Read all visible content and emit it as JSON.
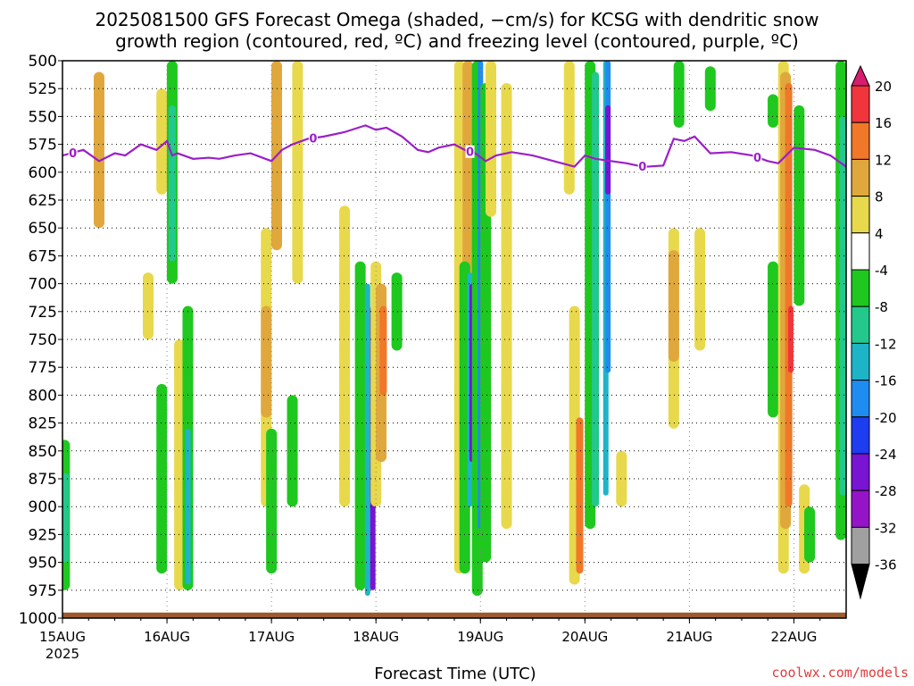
{
  "chart_data": {
    "type": "heatmap",
    "title_line1": "2025081500 GFS Forecast Omega (shaded, −cm/s) for KCSG with dendritic snow",
    "title_line2": "growth region (contoured, red, ºC) and freezing level (contoured, purple, ºC)",
    "xlabel": "Forecast Time (UTC)",
    "x_ticks": [
      "15AUG",
      "16AUG",
      "17AUG",
      "18AUG",
      "19AUG",
      "20AUG",
      "21AUG",
      "22AUG"
    ],
    "x_year": "2025",
    "xlim_days": [
      0,
      7.5
    ],
    "y_ticks": [
      500,
      525,
      550,
      575,
      600,
      625,
      650,
      675,
      700,
      725,
      750,
      775,
      800,
      825,
      850,
      875,
      900,
      925,
      950,
      975,
      1000
    ],
    "ylim_hpa": [
      500,
      1000
    ],
    "y_inverted": true,
    "grid": true,
    "colorbar": {
      "labels": [
        "20",
        "16",
        "12",
        "8",
        "4",
        "-4",
        "-8",
        "-12",
        "-16",
        "-20",
        "-24",
        "-28",
        "-32",
        "-36"
      ],
      "colors": [
        "#d81c6e",
        "#f0363c",
        "#f07828",
        "#e0a83c",
        "#e8d84c",
        "#ffffff",
        "#1ec81e",
        "#23c88c",
        "#1eb4c8",
        "#1e8cf0",
        "#1e3cf0",
        "#7814d2",
        "#9614c8",
        "#a0a0a0",
        "#000000"
      ]
    },
    "freezing_level": {
      "label": "0",
      "color": "#9b1fc8",
      "x_days": [
        0,
        0.2,
        0.35,
        0.5,
        0.6,
        0.75,
        0.9,
        1.0,
        1.05,
        1.1,
        1.25,
        1.4,
        1.5,
        1.65,
        1.8,
        2.0,
        2.1,
        2.2,
        2.35,
        2.5,
        2.7,
        2.9,
        3.0,
        3.1,
        3.25,
        3.4,
        3.5,
        3.6,
        3.75,
        3.85,
        3.95,
        4.05,
        4.15,
        4.3,
        4.5,
        4.7,
        4.9,
        5.0,
        5.1,
        5.25,
        5.4,
        5.5,
        5.6,
        5.75,
        5.85,
        5.95,
        6.05,
        6.2,
        6.4,
        6.6,
        6.75,
        6.85,
        7.0,
        7.2,
        7.35,
        7.5
      ],
      "hpa": [
        585,
        580,
        590,
        583,
        585,
        575,
        580,
        572,
        585,
        583,
        588,
        587,
        588,
        585,
        583,
        590,
        580,
        575,
        570,
        568,
        564,
        558,
        562,
        560,
        568,
        580,
        582,
        578,
        575,
        580,
        583,
        590,
        585,
        582,
        585,
        590,
        595,
        585,
        588,
        590,
        592,
        594,
        595,
        594,
        570,
        572,
        568,
        583,
        582,
        585,
        590,
        592,
        578,
        580,
        585,
        595
      ],
      "label_x_days": [
        0.1,
        2.4,
        3.9,
        5.55,
        6.65
      ]
    },
    "omega_cells": [
      {
        "day": 0.35,
        "top": 510,
        "bot": 650,
        "level": 8
      },
      {
        "day": 0.02,
        "top": 840,
        "bot": 975,
        "level": -8
      },
      {
        "day": 0.03,
        "top": 870,
        "bot": 950,
        "level": -12
      },
      {
        "day": 0.82,
        "top": 690,
        "bot": 750,
        "level": 4
      },
      {
        "day": 0.95,
        "top": 525,
        "bot": 620,
        "level": 4
      },
      {
        "day": 0.95,
        "top": 790,
        "bot": 960,
        "level": -8
      },
      {
        "day": 1.05,
        "top": 500,
        "bot": 700,
        "level": -8
      },
      {
        "day": 1.05,
        "top": 540,
        "bot": 680,
        "level": -12
      },
      {
        "day": 1.12,
        "top": 750,
        "bot": 975,
        "level": 4
      },
      {
        "day": 1.2,
        "top": 720,
        "bot": 975,
        "level": -8
      },
      {
        "day": 1.2,
        "top": 830,
        "bot": 970,
        "level": -16
      },
      {
        "day": 1.95,
        "top": 650,
        "bot": 900,
        "level": 4
      },
      {
        "day": 1.95,
        "top": 720,
        "bot": 820,
        "level": 8
      },
      {
        "day": 2.05,
        "top": 500,
        "bot": 670,
        "level": 8
      },
      {
        "day": 2.0,
        "top": 830,
        "bot": 960,
        "level": -8
      },
      {
        "day": 2.2,
        "top": 800,
        "bot": 900,
        "level": -8
      },
      {
        "day": 2.25,
        "top": 500,
        "bot": 700,
        "level": 4
      },
      {
        "day": 2.7,
        "top": 630,
        "bot": 900,
        "level": 4
      },
      {
        "day": 2.85,
        "top": 680,
        "bot": 975,
        "level": -8
      },
      {
        "day": 2.92,
        "top": 700,
        "bot": 980,
        "level": -16
      },
      {
        "day": 2.97,
        "top": 720,
        "bot": 975,
        "level": -24
      },
      {
        "day": 3.0,
        "top": 680,
        "bot": 900,
        "level": 4
      },
      {
        "day": 3.05,
        "top": 700,
        "bot": 860,
        "level": 8
      },
      {
        "day": 3.07,
        "top": 720,
        "bot": 800,
        "level": 12
      },
      {
        "day": 3.2,
        "top": 690,
        "bot": 760,
        "level": -8
      },
      {
        "day": 3.8,
        "top": 500,
        "bot": 960,
        "level": 4
      },
      {
        "day": 3.88,
        "top": 500,
        "bot": 760,
        "level": 8
      },
      {
        "day": 3.85,
        "top": 680,
        "bot": 960,
        "level": -8
      },
      {
        "day": 3.9,
        "top": 690,
        "bot": 900,
        "level": -16
      },
      {
        "day": 3.92,
        "top": 700,
        "bot": 860,
        "level": -24
      },
      {
        "day": 3.97,
        "top": 500,
        "bot": 980,
        "level": -8
      },
      {
        "day": 4.0,
        "top": 500,
        "bot": 920,
        "level": -20
      },
      {
        "day": 4.05,
        "top": 520,
        "bot": 950,
        "level": -8
      },
      {
        "day": 4.1,
        "top": 500,
        "bot": 640,
        "level": 4
      },
      {
        "day": 4.25,
        "top": 520,
        "bot": 920,
        "level": 4
      },
      {
        "day": 4.85,
        "top": 500,
        "bot": 620,
        "level": 4
      },
      {
        "day": 4.9,
        "top": 720,
        "bot": 970,
        "level": 4
      },
      {
        "day": 4.95,
        "top": 820,
        "bot": 960,
        "level": 12
      },
      {
        "day": 5.05,
        "top": 500,
        "bot": 920,
        "level": -8
      },
      {
        "day": 5.1,
        "top": 510,
        "bot": 900,
        "level": -12
      },
      {
        "day": 5.2,
        "top": 500,
        "bot": 890,
        "level": -16
      },
      {
        "day": 5.22,
        "top": 500,
        "bot": 780,
        "level": -20
      },
      {
        "day": 5.22,
        "top": 540,
        "bot": 620,
        "level": -24
      },
      {
        "day": 5.35,
        "top": 850,
        "bot": 900,
        "level": 4
      },
      {
        "day": 5.85,
        "top": 650,
        "bot": 830,
        "level": 4
      },
      {
        "day": 5.85,
        "top": 670,
        "bot": 770,
        "level": 8
      },
      {
        "day": 6.1,
        "top": 650,
        "bot": 760,
        "level": 4
      },
      {
        "day": 5.9,
        "top": 500,
        "bot": 560,
        "level": -8
      },
      {
        "day": 6.2,
        "top": 505,
        "bot": 545,
        "level": -8
      },
      {
        "day": 6.8,
        "top": 680,
        "bot": 820,
        "level": -8
      },
      {
        "day": 6.8,
        "top": 530,
        "bot": 560,
        "level": -8
      },
      {
        "day": 6.9,
        "top": 500,
        "bot": 960,
        "level": 4
      },
      {
        "day": 6.92,
        "top": 510,
        "bot": 920,
        "level": 8
      },
      {
        "day": 6.95,
        "top": 520,
        "bot": 900,
        "level": 12
      },
      {
        "day": 6.97,
        "top": 720,
        "bot": 780,
        "level": 16
      },
      {
        "day": 7.05,
        "top": 540,
        "bot": 720,
        "level": -8
      },
      {
        "day": 7.1,
        "top": 880,
        "bot": 960,
        "level": 4
      },
      {
        "day": 7.15,
        "top": 900,
        "bot": 950,
        "level": -8
      },
      {
        "day": 7.45,
        "top": 500,
        "bot": 930,
        "level": -8
      },
      {
        "day": 7.47,
        "top": 550,
        "bot": 890,
        "level": -12
      }
    ],
    "ground": {
      "color": "#9c5a2e",
      "hpa_top": 995
    }
  },
  "credit": "coolwx.com/models"
}
